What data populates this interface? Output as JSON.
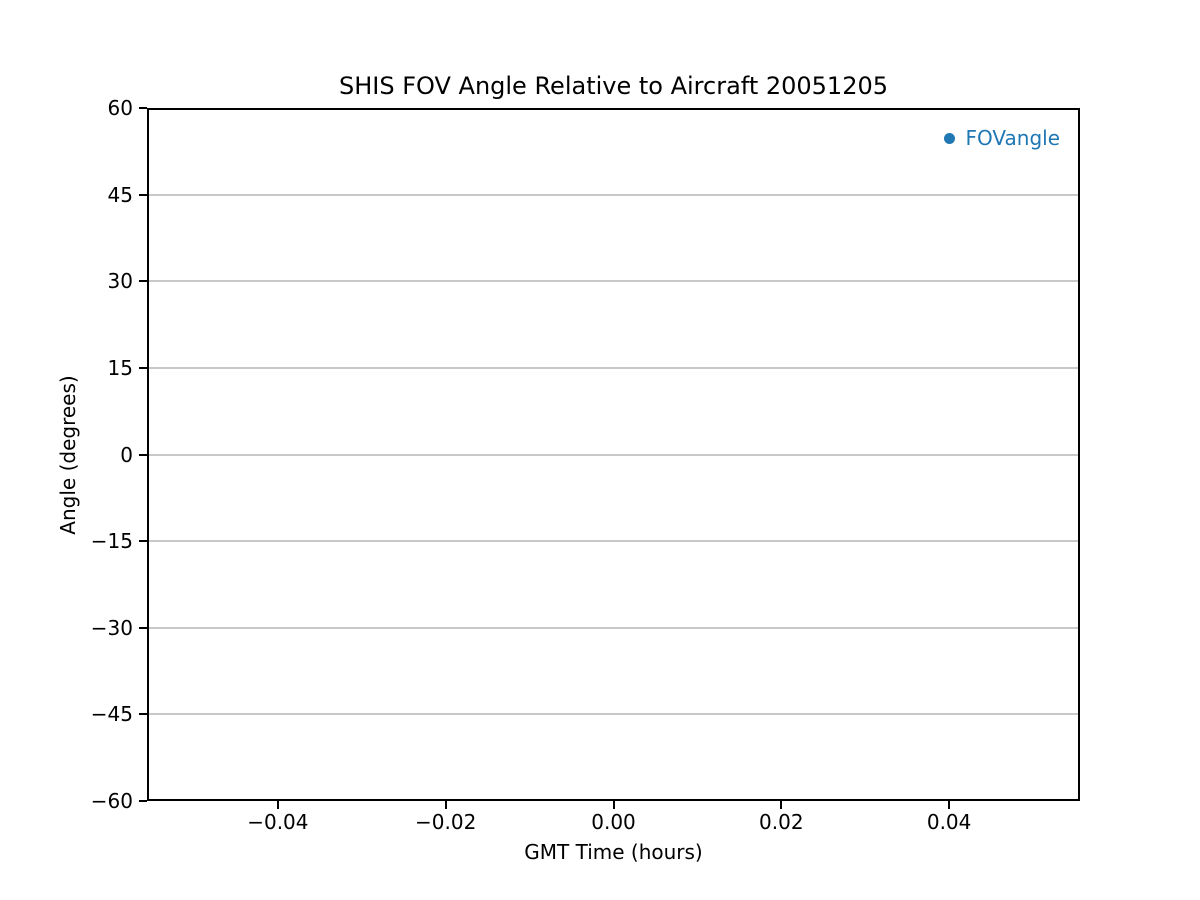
{
  "chart_data": {
    "type": "scatter",
    "title": "SHIS FOV Angle Relative to Aircraft 20051205",
    "xlabel": "GMT Time (hours)",
    "ylabel": "Angle (degrees)",
    "xlim": [
      -0.0556,
      0.0556
    ],
    "ylim": [
      -60,
      60
    ],
    "xticks": [
      -0.04,
      -0.02,
      0,
      0.02,
      0.04
    ],
    "xtick_labels": [
      "−0.04",
      "−0.02",
      "0.00",
      "0.02",
      "0.04"
    ],
    "yticks": [
      60,
      45,
      30,
      15,
      0,
      -15,
      -30,
      -45,
      -60
    ],
    "ytick_labels": [
      "60",
      "45",
      "30",
      "15",
      "0",
      "−15",
      "−30",
      "−45",
      "−60"
    ],
    "grid": "horizontal",
    "grid_color": "#c8c8c8",
    "axis_color": "#000000",
    "background_color": "#ffffff",
    "series": [
      {
        "name": "FOVangle",
        "marker": "circle",
        "color": "#1f77b4",
        "x": [],
        "y": []
      }
    ],
    "legend": {
      "position": "upper right",
      "frame": false,
      "entries": [
        {
          "label": "FOVangle",
          "marker": "circle",
          "color": "#1f77b4"
        }
      ]
    }
  }
}
